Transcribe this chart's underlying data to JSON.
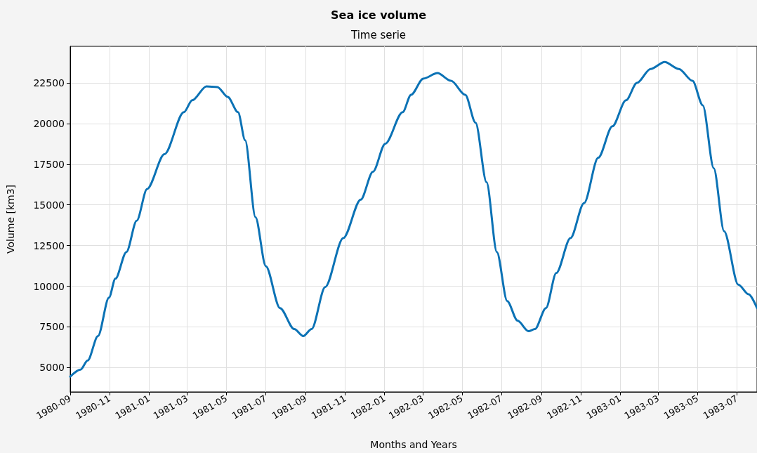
{
  "chart_data": {
    "type": "line",
    "title": "Sea ice volume",
    "subtitle": "Time serie",
    "xlabel": "Months and Years",
    "ylabel": "Volume [km3]",
    "x": [
      "1980-09-01",
      "1980-09-17",
      "1980-09-28",
      "1980-10-14",
      "1980-10-31",
      "1980-11-10",
      "1980-11-27",
      "1980-12-13",
      "1980-12-29",
      "1981-01-25",
      "1981-02-24",
      "1981-03-09",
      "1981-03-31",
      "1981-04-17",
      "1981-05-03",
      "1981-05-19",
      "1981-05-30",
      "1981-06-15",
      "1981-07-01",
      "1981-07-23",
      "1981-08-14",
      "1981-08-28",
      "1981-09-10",
      "1981-10-01",
      "1981-10-29",
      "1981-11-25",
      "1981-12-14",
      "1982-01-02",
      "1982-01-29",
      "1982-02-11",
      "1982-03-02",
      "1982-03-24",
      "1982-04-14",
      "1982-05-06",
      "1982-05-22",
      "1982-06-08",
      "1982-06-24",
      "1982-07-10",
      "1982-07-26",
      "1982-08-12",
      "1982-08-22",
      "1982-09-08",
      "1982-09-24",
      "1982-10-16",
      "1982-11-06",
      "1982-11-28",
      "1982-12-20",
      "1983-01-10",
      "1983-01-27",
      "1983-02-17",
      "1983-03-11",
      "1983-04-02",
      "1983-04-23",
      "1983-05-09",
      "1983-05-26",
      "1983-06-11",
      "1983-07-03",
      "1983-07-19",
      "1983-08-01"
    ],
    "series": [
      {
        "color": "#0b72b5",
        "values": [
          4440,
          4870,
          5430,
          6935,
          9300,
          10460,
          12100,
          14030,
          15970,
          18120,
          20700,
          21430,
          22290,
          22250,
          21640,
          20700,
          18975,
          14245,
          11235,
          8655,
          7365,
          6935,
          7365,
          9945,
          12955,
          15320,
          17040,
          18760,
          20700,
          21770,
          22765,
          23105,
          22630,
          21770,
          20050,
          16390,
          12100,
          9085,
          7880,
          7235,
          7365,
          8655,
          10805,
          12955,
          15105,
          17900,
          19835,
          21430,
          22500,
          23360,
          23790,
          23360,
          22630,
          21125,
          17255,
          13385,
          10100,
          9500,
          8655
        ]
      }
    ],
    "xlim": [
      "1980-09",
      "1983-08"
    ],
    "xticks": [
      "1980-09",
      "1980-11",
      "1981-01",
      "1981-03",
      "1981-05",
      "1981-07",
      "1981-09",
      "1981-11",
      "1982-01",
      "1982-03",
      "1982-05",
      "1982-07",
      "1982-09",
      "1982-11",
      "1983-01",
      "1983-03",
      "1983-05",
      "1983-07"
    ],
    "ylim": [
      3500,
      24750
    ],
    "yticks": [
      5000,
      7500,
      10000,
      12500,
      15000,
      17500,
      20000,
      22500
    ],
    "grid": true,
    "marker": "none",
    "line_style": "solid"
  }
}
